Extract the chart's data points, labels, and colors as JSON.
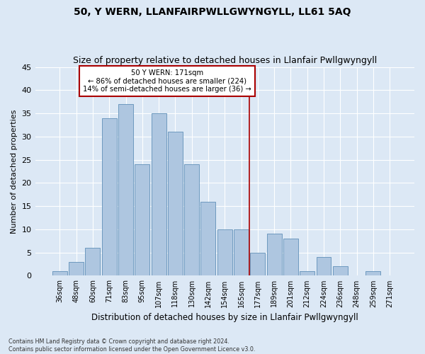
{
  "title": "50, Y WERN, LLANFAIRPWLLGWYNGYLL, LL61 5AQ",
  "subtitle": "Size of property relative to detached houses in Llanfair Pwllgwyngyll",
  "xlabel": "Distribution of detached houses by size in Llanfair Pwllgwyngyll",
  "ylabel": "Number of detached properties",
  "bar_labels": [
    "36sqm",
    "48sqm",
    "60sqm",
    "71sqm",
    "83sqm",
    "95sqm",
    "107sqm",
    "118sqm",
    "130sqm",
    "142sqm",
    "154sqm",
    "165sqm",
    "177sqm",
    "189sqm",
    "201sqm",
    "212sqm",
    "224sqm",
    "236sqm",
    "248sqm",
    "259sqm",
    "271sqm"
  ],
  "bar_values": [
    1,
    3,
    6,
    34,
    37,
    24,
    35,
    31,
    24,
    16,
    10,
    10,
    5,
    9,
    8,
    1,
    4,
    2,
    0,
    1,
    0
  ],
  "bar_color": "#aec6e0",
  "bar_edge_color": "#6090b8",
  "background_color": "#dce8f5",
  "grid_color": "#ffffff",
  "property_line_x": 11.5,
  "annotation_text": "50 Y WERN: 171sqm\n← 86% of detached houses are smaller (224)\n14% of semi-detached houses are larger (36) →",
  "annotation_box_color": "#aa0000",
  "ylim": [
    0,
    45
  ],
  "yticks": [
    0,
    5,
    10,
    15,
    20,
    25,
    30,
    35,
    40,
    45
  ],
  "footnote": "Contains HM Land Registry data © Crown copyright and database right 2024.\nContains public sector information licensed under the Open Government Licence v3.0.",
  "title_fontsize": 10,
  "subtitle_fontsize": 9,
  "xlabel_fontsize": 8.5,
  "ylabel_fontsize": 8,
  "tick_fontsize": 7
}
